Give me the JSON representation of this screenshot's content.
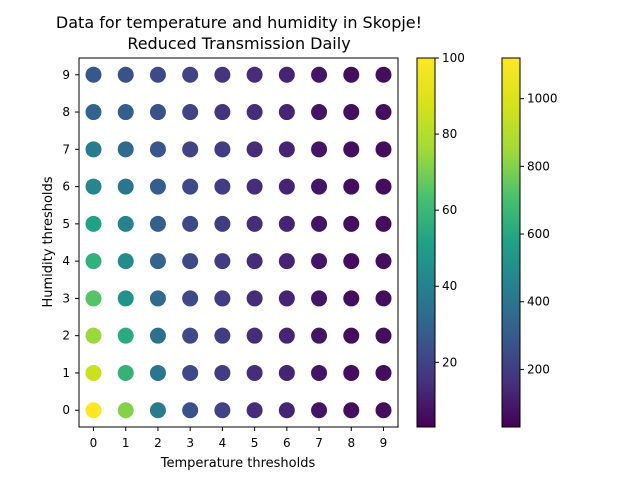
{
  "chart_data": {
    "type": "scatter",
    "title_line1": "Data for temperature and humidity in Skopje!",
    "title_line2": "Reduced Transmission Daily",
    "xlabel": "Temperature thresholds",
    "ylabel": "Humidity thresholds",
    "x_ticks": [
      "0",
      "1",
      "2",
      "3",
      "4",
      "5",
      "6",
      "7",
      "8",
      "9"
    ],
    "y_ticks": [
      "0",
      "1",
      "2",
      "3",
      "4",
      "5",
      "6",
      "7",
      "8",
      "9"
    ],
    "xlim": [
      -0.45,
      9.45
    ],
    "ylim": [
      -0.45,
      9.45
    ],
    "grid": false,
    "colormap": "viridis",
    "values_grid": [
      [
        100,
        72,
        38,
        24,
        20,
        14,
        12,
        8,
        6,
        6
      ],
      [
        85,
        58,
        36,
        22,
        18,
        14,
        12,
        8,
        6,
        6
      ],
      [
        75,
        55,
        34,
        22,
        18,
        14,
        12,
        8,
        6,
        6
      ],
      [
        65,
        46,
        32,
        22,
        18,
        14,
        12,
        8,
        6,
        6
      ],
      [
        57,
        44,
        30,
        22,
        18,
        14,
        12,
        8,
        6,
        6
      ],
      [
        52,
        40,
        28,
        22,
        18,
        14,
        12,
        8,
        6,
        6
      ],
      [
        42,
        36,
        28,
        22,
        18,
        14,
        12,
        8,
        6,
        6
      ],
      [
        38,
        32,
        26,
        20,
        18,
        14,
        12,
        8,
        6,
        6
      ],
      [
        30,
        28,
        24,
        20,
        16,
        14,
        12,
        8,
        6,
        6
      ],
      [
        26,
        24,
        22,
        20,
        16,
        14,
        12,
        8,
        6,
        6
      ]
    ],
    "colorbar_1": {
      "min": 3,
      "max": 100,
      "ticks": [
        20,
        40,
        60,
        80,
        100
      ]
    },
    "colorbar_2": {
      "min": 30,
      "max": 1120,
      "ticks": [
        200,
        400,
        600,
        800,
        1000
      ]
    }
  }
}
